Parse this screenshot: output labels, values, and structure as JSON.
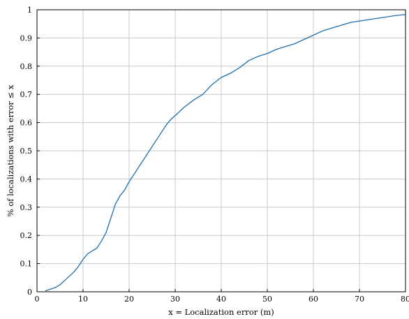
{
  "chart_data": {
    "type": "line",
    "title": "",
    "xlabel": "x = Localization error (m)",
    "ylabel": "% of localizations with error ≤ x",
    "xlim": [
      0,
      80
    ],
    "ylim": [
      0,
      1
    ],
    "grid": true,
    "x_ticks": [
      0,
      10,
      20,
      30,
      40,
      50,
      60,
      70,
      80
    ],
    "y_ticks": [
      0,
      0.1,
      0.2,
      0.3,
      0.4,
      0.5,
      0.6,
      0.7,
      0.8,
      0.9,
      1
    ],
    "x_tick_labels": [
      "0",
      "10",
      "20",
      "30",
      "40",
      "50",
      "60",
      "70",
      "80"
    ],
    "y_tick_labels": [
      "0",
      "0.1",
      "0.2",
      "0.3",
      "0.4",
      "0.5",
      "0.6",
      "0.7",
      "0.8",
      "0.9",
      "1"
    ],
    "line_color": "#1f6fae",
    "series": [
      {
        "x": [
          1.8,
          3,
          4,
          5,
          6,
          7,
          8,
          9,
          10,
          11,
          12,
          13,
          14,
          15,
          16,
          17,
          18,
          19,
          20,
          21,
          22,
          23,
          24,
          25,
          26,
          27,
          28,
          29,
          30,
          32,
          34,
          35,
          36,
          38,
          40,
          42,
          44,
          46,
          48,
          50,
          52,
          54,
          56,
          58,
          60,
          62,
          64,
          66,
          68,
          70,
          72,
          74,
          76,
          78,
          80
        ],
        "y": [
          0.003,
          0.01,
          0.015,
          0.025,
          0.04,
          0.055,
          0.07,
          0.09,
          0.115,
          0.135,
          0.145,
          0.155,
          0.18,
          0.21,
          0.26,
          0.31,
          0.34,
          0.36,
          0.39,
          0.415,
          0.44,
          0.465,
          0.49,
          0.515,
          0.54,
          0.565,
          0.59,
          0.61,
          0.625,
          0.655,
          0.68,
          0.69,
          0.7,
          0.735,
          0.76,
          0.775,
          0.795,
          0.82,
          0.835,
          0.845,
          0.86,
          0.87,
          0.88,
          0.895,
          0.91,
          0.925,
          0.935,
          0.945,
          0.955,
          0.96,
          0.965,
          0.97,
          0.975,
          0.98,
          0.983
        ]
      }
    ]
  }
}
